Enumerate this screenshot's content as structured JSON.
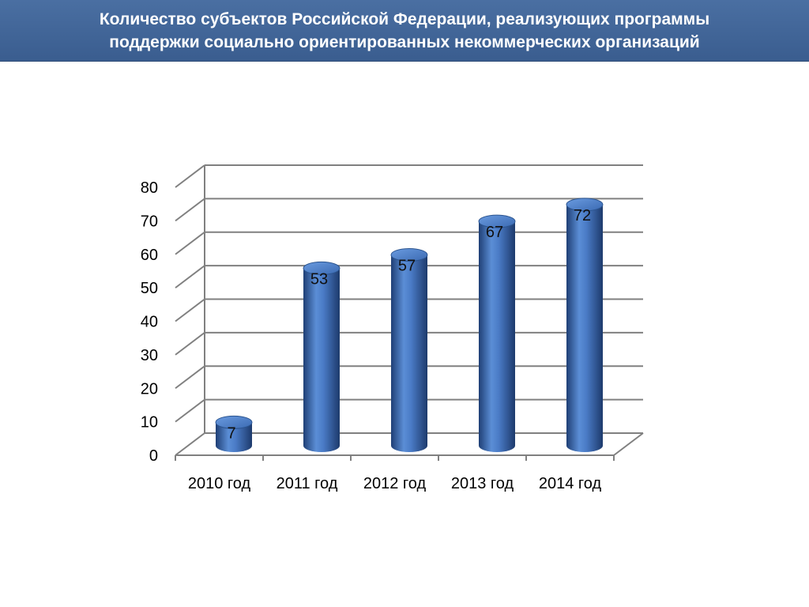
{
  "header": {
    "title_line1": "Количество субъектов Российской Федерации, реализующих программы",
    "title_line2": "поддержки социально ориентированных некоммерческих организаций"
  },
  "colors": {
    "header_bg": "#3f6496",
    "bar": "#3d6cb5",
    "bar_dark": "#23457e",
    "grid": "#808080"
  },
  "chart_data": {
    "type": "bar",
    "style": "3d-cylinder",
    "categories": [
      "2010 год",
      "2011 год",
      "2012 год",
      "2013 год",
      "2014 год"
    ],
    "series": [
      {
        "values": [
          7,
          53,
          57,
          67,
          72
        ]
      }
    ],
    "data_labels": [
      "7",
      "53",
      "57",
      "67",
      "72"
    ],
    "ylim": [
      0,
      80
    ],
    "yticks": [
      0,
      10,
      20,
      30,
      40,
      50,
      60,
      70,
      80
    ],
    "ytick_labels": [
      "0",
      "10",
      "20",
      "30",
      "40",
      "50",
      "60",
      "70",
      "80"
    ],
    "grid": true,
    "legend": "none",
    "xlabel": "",
    "ylabel": ""
  }
}
